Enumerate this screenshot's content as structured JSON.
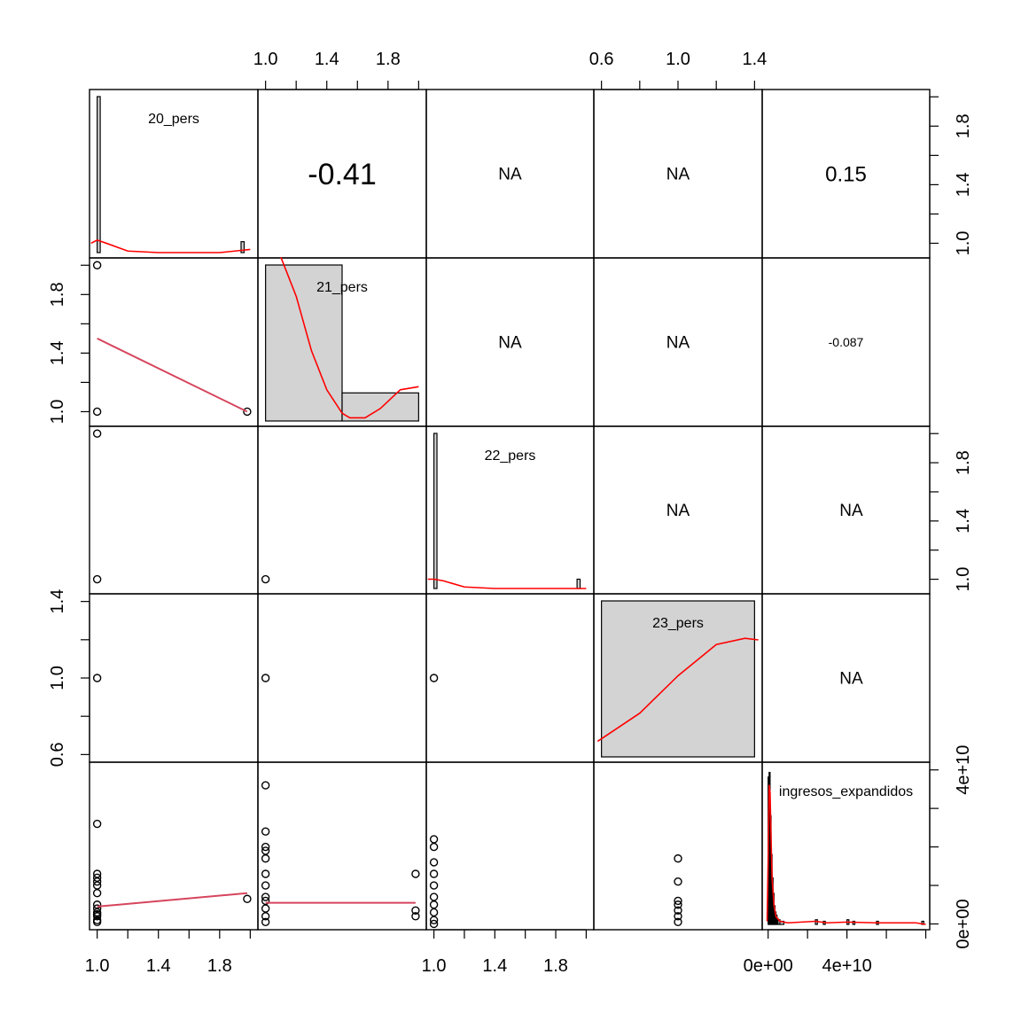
{
  "chart_data": {
    "type": "scatter",
    "variables": [
      "20_pers",
      "21_pers",
      "22_pers",
      "23_pers",
      "ingresos_expandidos"
    ],
    "correlations": [
      {
        "row": 0,
        "col": 1,
        "label": "-0.41"
      },
      {
        "row": 0,
        "col": 2,
        "label": "NA"
      },
      {
        "row": 0,
        "col": 3,
        "label": "NA"
      },
      {
        "row": 0,
        "col": 4,
        "label": "0.15"
      },
      {
        "row": 1,
        "col": 2,
        "label": "NA"
      },
      {
        "row": 1,
        "col": 3,
        "label": "NA"
      },
      {
        "row": 1,
        "col": 4,
        "label": "-0.087"
      },
      {
        "row": 2,
        "col": 3,
        "label": "NA"
      },
      {
        "row": 2,
        "col": 4,
        "label": "NA"
      },
      {
        "row": 3,
        "col": 4,
        "label": "NA"
      }
    ],
    "axes": {
      "top": [
        {
          "col": 1,
          "ticks": [
            1.0,
            1.2,
            1.4,
            1.6,
            1.8,
            2.0
          ],
          "labels": [
            "1.0",
            "1.4",
            "1.8"
          ]
        },
        {
          "col": 3,
          "ticks": [
            0.6,
            0.8,
            1.0,
            1.2,
            1.4
          ],
          "labels": [
            "0.6",
            "1.0",
            "1.4"
          ]
        }
      ],
      "bottom": [
        {
          "col": 0,
          "ticks": [
            1.0,
            1.2,
            1.4,
            1.6,
            1.8,
            2.0
          ],
          "labels": [
            "1.0",
            "1.4",
            "1.8"
          ]
        },
        {
          "col": 2,
          "ticks": [
            1.0,
            1.2,
            1.4,
            1.6,
            1.8,
            2.0
          ],
          "labels": [
            "1.0",
            "1.4",
            "1.8"
          ]
        },
        {
          "col": 4,
          "ticks": [
            0,
            20000000000.0,
            40000000000.0,
            60000000000.0,
            80000000000.0
          ],
          "labels": [
            "0e+00",
            "4e+10"
          ]
        }
      ],
      "left": [
        {
          "row": 1,
          "ticks": [
            1.0,
            1.2,
            1.4,
            1.6,
            1.8,
            2.0
          ],
          "labels": [
            "1.0",
            "1.4",
            "1.8"
          ]
        },
        {
          "row": 3,
          "ticks": [
            0.6,
            0.8,
            1.0,
            1.2,
            1.4
          ],
          "labels": [
            "0.6",
            "1.0",
            "1.4"
          ]
        }
      ],
      "right": [
        {
          "row": 0,
          "ticks": [
            1.0,
            1.2,
            1.4,
            1.6,
            1.8,
            2.0
          ],
          "labels": [
            "1.0",
            "1.4",
            "1.8"
          ]
        },
        {
          "row": 2,
          "ticks": [
            1.0,
            1.2,
            1.4,
            1.6,
            1.8,
            2.0
          ],
          "labels": [
            "1.0",
            "1.4",
            "1.8"
          ]
        },
        {
          "row": 4,
          "ticks": [
            0,
            10000000000.0,
            20000000000.0,
            30000000000.0,
            40000000000.0
          ],
          "labels": [
            "0e+00",
            "4e+10"
          ]
        }
      ]
    },
    "histograms": {
      "20_pers": {
        "bins": [
          [
            1.0,
            1.02,
            1.0
          ],
          [
            1.94,
            1.96,
            0.07
          ]
        ],
        "density": [
          [
            0.96,
            0.06
          ],
          [
            1.0,
            0.08
          ],
          [
            1.06,
            0.06
          ],
          [
            1.2,
            0.01
          ],
          [
            1.4,
            0.0
          ],
          [
            1.8,
            0.0
          ],
          [
            1.9,
            0.01
          ],
          [
            2.0,
            0.02
          ]
        ]
      },
      "21_pers": {
        "bins": [
          [
            1.0,
            1.5,
            1.0
          ],
          [
            1.5,
            2.0,
            0.18
          ]
        ],
        "density": [
          [
            1.1,
            1.05
          ],
          [
            1.2,
            0.8
          ],
          [
            1.3,
            0.45
          ],
          [
            1.4,
            0.2
          ],
          [
            1.5,
            0.05
          ],
          [
            1.55,
            0.02
          ],
          [
            1.65,
            0.02
          ],
          [
            1.75,
            0.08
          ],
          [
            1.88,
            0.2
          ],
          [
            2.0,
            0.22
          ]
        ]
      },
      "22_pers": {
        "bins": [
          [
            1.0,
            1.02,
            1.0
          ],
          [
            1.94,
            1.96,
            0.06
          ]
        ],
        "density": [
          [
            0.96,
            0.06
          ],
          [
            1.0,
            0.06
          ],
          [
            1.06,
            0.05
          ],
          [
            1.2,
            0.01
          ],
          [
            1.4,
            0.0
          ],
          [
            1.8,
            0.0
          ],
          [
            2.0,
            0.0
          ]
        ]
      },
      "23_pers": {
        "bins": [
          [
            0.6,
            1.4,
            1.0
          ]
        ],
        "density": [
          [
            0.58,
            0.1
          ],
          [
            0.8,
            0.28
          ],
          [
            1.0,
            0.52
          ],
          [
            1.2,
            0.72
          ],
          [
            1.35,
            0.76
          ],
          [
            1.42,
            0.75
          ]
        ]
      },
      "ingresos_expandidos": {
        "bins": [
          [
            0.0,
            500000000.0,
            0.95
          ],
          [
            500000000.0,
            1000000000.0,
            0.98
          ],
          [
            1000000000.0,
            1500000000.0,
            0.7
          ],
          [
            1500000000.0,
            2000000000.0,
            0.45
          ],
          [
            2000000000.0,
            2500000000.0,
            0.3
          ],
          [
            2500000000.0,
            3000000000.0,
            0.2
          ],
          [
            3000000000.0,
            3500000000.0,
            0.12
          ],
          [
            3500000000.0,
            4000000000.0,
            0.08
          ],
          [
            4000000000.0,
            4500000000.0,
            0.06
          ],
          [
            4500000000.0,
            5000000000.0,
            0.04
          ],
          [
            5000000000.0,
            6000000000.0,
            0.03
          ],
          [
            6000000000.0,
            8000000000.0,
            0.02
          ],
          [
            24000000000.0,
            25000000000.0,
            0.03
          ],
          [
            28000000000.0,
            29000000000.0,
            0.02
          ],
          [
            40000000000.0,
            41000000000.0,
            0.03
          ],
          [
            43000000000.0,
            44000000000.0,
            0.02
          ],
          [
            55000000000.0,
            56000000000.0,
            0.02
          ],
          [
            78000000000.0,
            79000000000.0,
            0.02
          ]
        ],
        "density": [
          [
            -500000000.0,
            0.02
          ],
          [
            0.0,
            0.4
          ],
          [
            500000000.0,
            0.9
          ],
          [
            1000000000.0,
            0.85
          ],
          [
            1500000000.0,
            0.55
          ],
          [
            2000000000.0,
            0.3
          ],
          [
            3000000000.0,
            0.12
          ],
          [
            4000000000.0,
            0.05
          ],
          [
            6000000000.0,
            0.02
          ],
          [
            10000000000.0,
            0.01
          ],
          [
            24000000000.0,
            0.02
          ],
          [
            30000000000.0,
            0.01
          ],
          [
            40000000000.0,
            0.015
          ],
          [
            55000000000.0,
            0.01
          ],
          [
            75000000000.0,
            0.01
          ],
          [
            80000000000.0,
            0.0
          ]
        ]
      }
    },
    "scatter_points": {
      "x_20_y_21": [
        [
          1.0,
          2.0
        ],
        [
          1.0,
          1.0
        ],
        [
          1.98,
          1.0
        ]
      ],
      "x_20_y_22": [
        [
          1.0,
          2.0
        ],
        [
          1.0,
          1.0
        ]
      ],
      "x_20_y_23": [
        [
          1.0,
          1.0
        ]
      ],
      "x_21_y_22": [
        [
          1.0,
          1.0
        ]
      ],
      "x_21_y_23": [
        [
          1.0,
          1.0
        ]
      ],
      "x_22_y_23": [
        [
          1.0,
          1.0
        ]
      ],
      "x_20_y_ing": [
        [
          1.0,
          26000000000.0
        ],
        [
          1.0,
          13000000000.0
        ],
        [
          1.0,
          12000000000.0
        ],
        [
          1.0,
          11000000000.0
        ],
        [
          1.0,
          10000000000.0
        ],
        [
          1.0,
          8000000000.0
        ],
        [
          1.0,
          5000000000.0
        ],
        [
          1.0,
          4000000000.0
        ],
        [
          1.0,
          3000000000.0
        ],
        [
          1.0,
          2500000000.0
        ],
        [
          1.0,
          2000000000.0
        ],
        [
          1.0,
          1000000000.0
        ],
        [
          1.0,
          500000000.0
        ],
        [
          1.98,
          6500000000.0
        ]
      ],
      "x_21_y_ing": [
        [
          1.0,
          36000000000.0
        ],
        [
          1.0,
          24000000000.0
        ],
        [
          1.0,
          20000000000.0
        ],
        [
          1.0,
          19000000000.0
        ],
        [
          1.0,
          17000000000.0
        ],
        [
          1.0,
          13000000000.0
        ],
        [
          1.0,
          10000000000.0
        ],
        [
          1.0,
          7000000000.0
        ],
        [
          1.0,
          6000000000.0
        ],
        [
          1.0,
          4000000000.0
        ],
        [
          1.0,
          2000000000.0
        ],
        [
          1.0,
          500000000.0
        ],
        [
          1.98,
          13000000000.0
        ],
        [
          1.98,
          3500000000.0
        ],
        [
          1.98,
          2000000000.0
        ]
      ],
      "x_22_y_ing": [
        [
          1.0,
          22000000000.0
        ],
        [
          1.0,
          20000000000.0
        ],
        [
          1.0,
          16000000000.0
        ],
        [
          1.0,
          13000000000.0
        ],
        [
          1.0,
          10000000000.0
        ],
        [
          1.0,
          7000000000.0
        ],
        [
          1.0,
          5000000000.0
        ],
        [
          1.0,
          3000000000.0
        ],
        [
          1.0,
          1000000000.0
        ],
        [
          1.0,
          0.0
        ]
      ],
      "x_23_y_ing": [
        [
          1.0,
          17000000000.0
        ],
        [
          1.0,
          11000000000.0
        ],
        [
          1.0,
          6000000000.0
        ],
        [
          1.0,
          5000000000.0
        ],
        [
          1.0,
          3500000000.0
        ],
        [
          1.0,
          2000000000.0
        ],
        [
          1.0,
          500000000.0
        ]
      ]
    },
    "fit_lines": {
      "x_20_y_21": [
        [
          1.0,
          1.5
        ],
        [
          1.98,
          1.0
        ]
      ],
      "x_20_y_ing": [
        [
          1.0,
          4500000000.0
        ],
        [
          1.98,
          8000000000.0
        ]
      ],
      "x_21_y_ing": [
        [
          1.0,
          5500000000.0
        ],
        [
          1.98,
          5500000000.0
        ]
      ]
    }
  }
}
